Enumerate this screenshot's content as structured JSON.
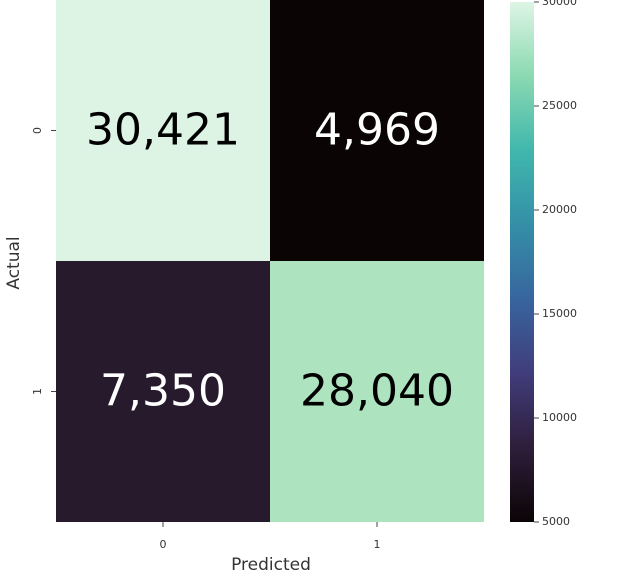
{
  "chart_data": {
    "type": "heatmap",
    "title": "",
    "xlabel": "Predicted",
    "ylabel": "Actual",
    "x_categories": [
      "0",
      "1"
    ],
    "y_categories": [
      "0",
      "1"
    ],
    "matrix": [
      [
        30421,
        4969
      ],
      [
        7350,
        28040
      ]
    ],
    "cell_labels": [
      [
        "30,421",
        "4,969"
      ],
      [
        "7,350",
        "28,040"
      ]
    ],
    "colormap": "mako",
    "colorbar": {
      "range": [
        5000,
        30000
      ],
      "ticks": [
        "5000",
        "10000",
        "15000",
        "20000",
        "25000",
        "30000"
      ],
      "tick_values": [
        5000,
        10000,
        15000,
        20000,
        25000,
        30000
      ]
    },
    "grid": false,
    "legend": "colorbar-right"
  },
  "colors": {
    "cell_fills": [
      [
        "#DDF3E4",
        "#0B0405"
      ],
      [
        "#271A2C",
        "#AEE3C0"
      ]
    ],
    "colorbar_stops": [
      "#0B0405",
      "#2E1E3B",
      "#413D7B",
      "#37659E",
      "#348FA7",
      "#40B7AD",
      "#8AD9B1",
      "#DEF5E5"
    ]
  }
}
